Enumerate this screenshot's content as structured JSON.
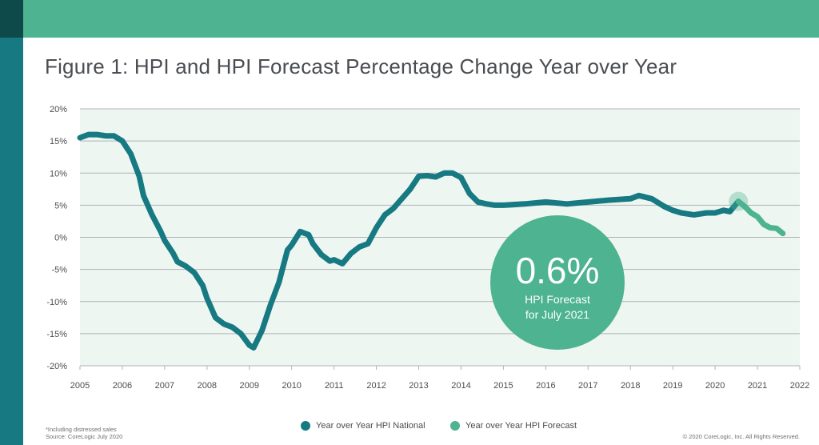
{
  "title": "Figure 1: HPI and HPI Forecast Percentage Change Year over Year",
  "callout": {
    "value": "0.6%",
    "line1": "HPI Forecast",
    "line2": "for July 2021"
  },
  "legend": {
    "national": "Year over Year HPI National",
    "forecast": "Year over Year HPI Forecast"
  },
  "footnote": {
    "line1": "*Including distressed sales",
    "line2": "Source: CoreLogic July 2020"
  },
  "copyright": "© 2020 CoreLogic, Inc. All Rights Reserved.",
  "colors": {
    "brand_green": "#4db391",
    "national": "#177a82",
    "forecast": "#4db391",
    "plot_background": "#eef6f1",
    "gridline": "#aeb3b6",
    "dark_corner": "#0e4a4a"
  },
  "chart_data": {
    "type": "line",
    "title": "Figure 1: HPI and HPI Forecast Percentage Change Year over Year",
    "xlabel": "",
    "ylabel": "",
    "xlim": [
      2005,
      2022
    ],
    "ylim": [
      -20,
      20
    ],
    "grid": true,
    "legend_position": "bottom",
    "x_ticks": [
      "2005",
      "2006",
      "2007",
      "2008",
      "2009",
      "2010",
      "2011",
      "2012",
      "2013",
      "2014",
      "2015",
      "2016",
      "2017",
      "2018",
      "2019",
      "2020",
      "2021",
      "2022"
    ],
    "y_ticks": [
      "20%",
      "15%",
      "10%",
      "5%",
      "0%",
      "-5%",
      "-10%",
      "-15%",
      "-20%"
    ],
    "series": [
      {
        "name": "Year over Year HPI National",
        "color": "#177a82",
        "x": [
          2005.0,
          2005.2,
          2005.4,
          2005.6,
          2005.8,
          2006.0,
          2006.2,
          2006.4,
          2006.5,
          2006.7,
          2006.9,
          2007.0,
          2007.2,
          2007.3,
          2007.5,
          2007.7,
          2007.9,
          2008.0,
          2008.2,
          2008.4,
          2008.6,
          2008.8,
          2009.0,
          2009.1,
          2009.3,
          2009.5,
          2009.7,
          2009.9,
          2010.0,
          2010.2,
          2010.4,
          2010.5,
          2010.7,
          2010.9,
          2011.0,
          2011.2,
          2011.4,
          2011.6,
          2011.8,
          2012.0,
          2012.2,
          2012.4,
          2012.6,
          2012.8,
          2013.0,
          2013.2,
          2013.4,
          2013.6,
          2013.8,
          2014.0,
          2014.2,
          2014.4,
          2014.6,
          2014.8,
          2015.0,
          2015.5,
          2016.0,
          2016.5,
          2017.0,
          2017.5,
          2018.0,
          2018.2,
          2018.5,
          2018.8,
          2019.0,
          2019.2,
          2019.5,
          2019.8,
          2020.0,
          2020.2,
          2020.35,
          2020.55
        ],
        "values": [
          15.5,
          16.0,
          16.0,
          15.8,
          15.8,
          15.0,
          13.0,
          9.5,
          6.5,
          3.5,
          1.0,
          -0.5,
          -2.5,
          -3.8,
          -4.5,
          -5.5,
          -7.5,
          -9.5,
          -12.5,
          -13.5,
          -14.0,
          -15.0,
          -16.8,
          -17.2,
          -14.5,
          -10.5,
          -7.0,
          -2.0,
          -1.2,
          0.9,
          0.4,
          -1.0,
          -2.7,
          -3.7,
          -3.5,
          -4.1,
          -2.5,
          -1.5,
          -1.0,
          1.5,
          3.5,
          4.5,
          6.0,
          7.5,
          9.5,
          9.6,
          9.4,
          10.0,
          10.0,
          9.3,
          6.8,
          5.5,
          5.2,
          5.0,
          5.0,
          5.2,
          5.5,
          5.2,
          5.5,
          5.8,
          6.0,
          6.5,
          6.0,
          4.8,
          4.2,
          3.8,
          3.5,
          3.8,
          3.8,
          4.2,
          4.0,
          5.6
        ]
      },
      {
        "name": "Year over Year HPI Forecast",
        "color": "#4db391",
        "x": [
          2020.55,
          2020.7,
          2020.85,
          2021.0,
          2021.15,
          2021.3,
          2021.45,
          2021.6
        ],
        "values": [
          5.6,
          4.8,
          3.8,
          3.2,
          2.0,
          1.5,
          1.4,
          0.6
        ]
      }
    ]
  }
}
